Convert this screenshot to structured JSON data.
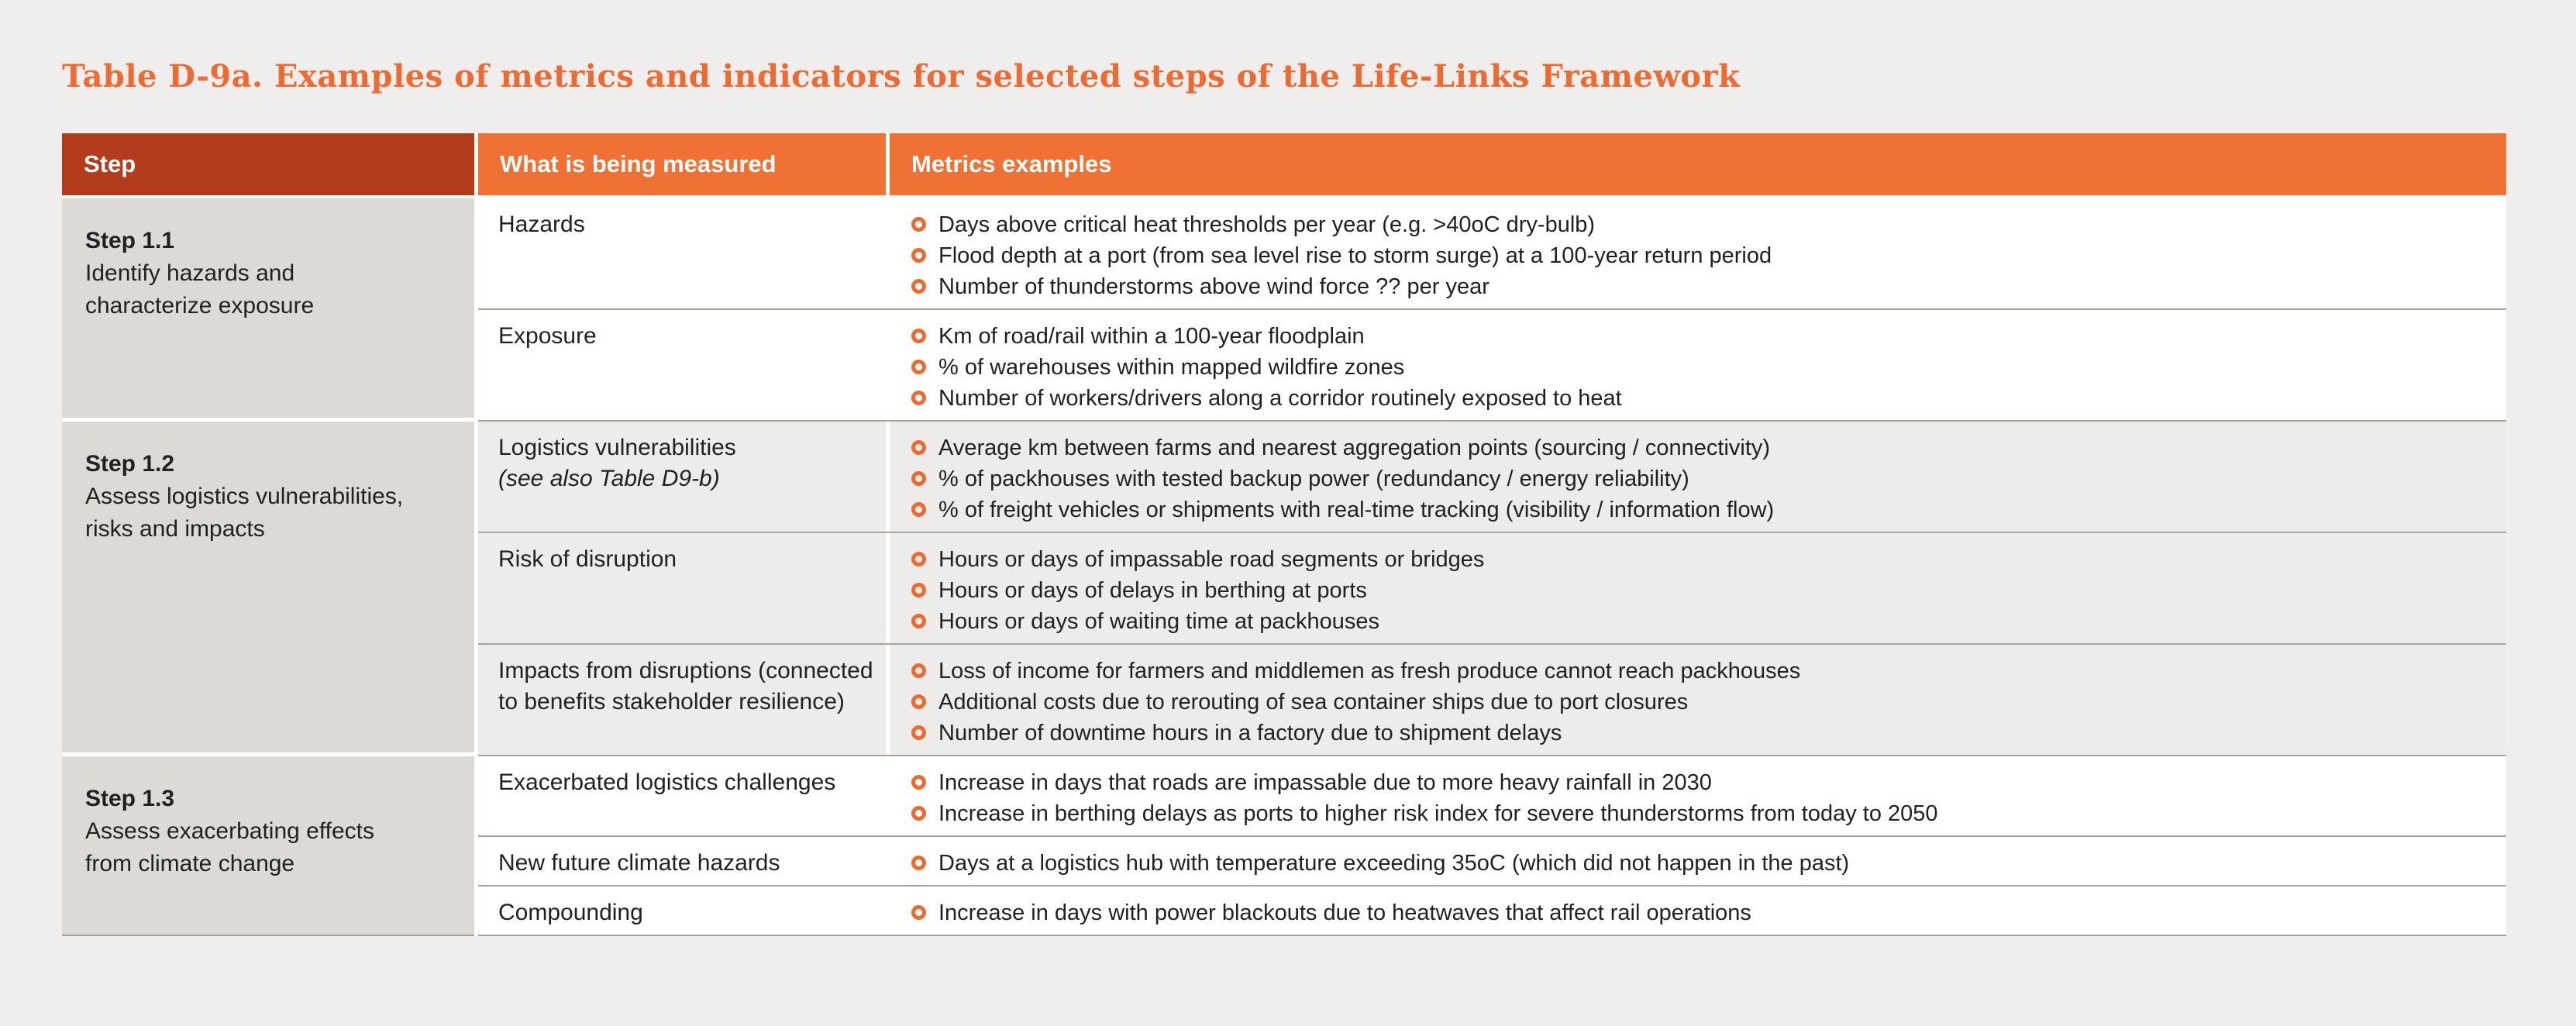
{
  "title": "Table D-9a. Examples of metrics and indicators for selected steps of the Life-Links Framework",
  "colors": {
    "page_bg": "#f0eeec",
    "title_orange": "#ec6b33",
    "header_step_bg": "#b23c1c",
    "header_accent_bg": "#ef7133",
    "step_column_bg": "#ddd9d4",
    "band_row_bg": "#eeecea",
    "row_bg": "#ffffff",
    "separator": "#a9a19b",
    "bullet": "#ec6b33"
  },
  "table": {
    "headers": [
      "Step",
      "What is being measured",
      "Metrics examples"
    ],
    "sections": [
      {
        "step_label": "Step 1.1",
        "step_desc_line1": "Identify hazards and",
        "step_desc_line2": "characterize exposure",
        "rows": [
          {
            "measured": "Hazards",
            "note": "",
            "metrics": [
              "Days above critical heat thresholds per year (e.g. >40oC dry-bulb)",
              "Flood depth at a port (from sea level rise to storm surge) at a 100-year return period",
              "Number of thunderstorms above wind force ?? per year"
            ]
          },
          {
            "measured": "Exposure",
            "note": "",
            "metrics": [
              "Km of road/rail within a 100-year floodplain",
              "% of warehouses within mapped wildfire zones",
              "Number of workers/drivers along a corridor routinely exposed to heat"
            ]
          }
        ]
      },
      {
        "step_label": "Step 1.2",
        "step_desc_line1": "Assess logistics vulnerabilities,",
        "step_desc_line2": "risks and impacts",
        "rows": [
          {
            "measured": "Logistics vulnerabilities",
            "note": "(see also Table D9-b)",
            "metrics": [
              "Average km between farms and nearest aggregation points (sourcing / connectivity)",
              "% of packhouses with tested backup power (redundancy / energy reliability)",
              "% of freight vehicles or shipments with real-time tracking (visibility / information flow)"
            ]
          },
          {
            "measured": "Risk of disruption",
            "note": "",
            "metrics": [
              "Hours or days of impassable road segments or bridges",
              "Hours or days of delays in berthing at ports",
              "Hours or days of waiting time at packhouses"
            ]
          },
          {
            "measured": "Impacts from disruptions (connected to benefits stakeholder resilience)",
            "note": "",
            "metrics": [
              "Loss of income for farmers and middlemen as fresh produce cannot reach packhouses",
              "Additional costs due to rerouting of sea container ships due to port closures",
              "Number of downtime hours in a factory due to shipment delays"
            ]
          }
        ]
      },
      {
        "step_label": "Step 1.3",
        "step_desc_line1": "Assess exacerbating effects",
        "step_desc_line2": "from climate change",
        "rows": [
          {
            "measured": "Exacerbated logistics challenges",
            "note": "",
            "metrics": [
              "Increase in days that roads are impassable due to more heavy rainfall in 2030",
              "Increase in berthing delays as ports to higher risk index for severe thunderstorms from today to 2050"
            ]
          },
          {
            "measured": "New future climate hazards",
            "note": "",
            "metrics": [
              "Days at a logistics hub with temperature exceeding 35oC (which did not happen in the past)"
            ]
          },
          {
            "measured": "Compounding",
            "note": "",
            "metrics": [
              "Increase in days with power blackouts due to heatwaves that affect rail operations"
            ]
          }
        ]
      }
    ]
  }
}
